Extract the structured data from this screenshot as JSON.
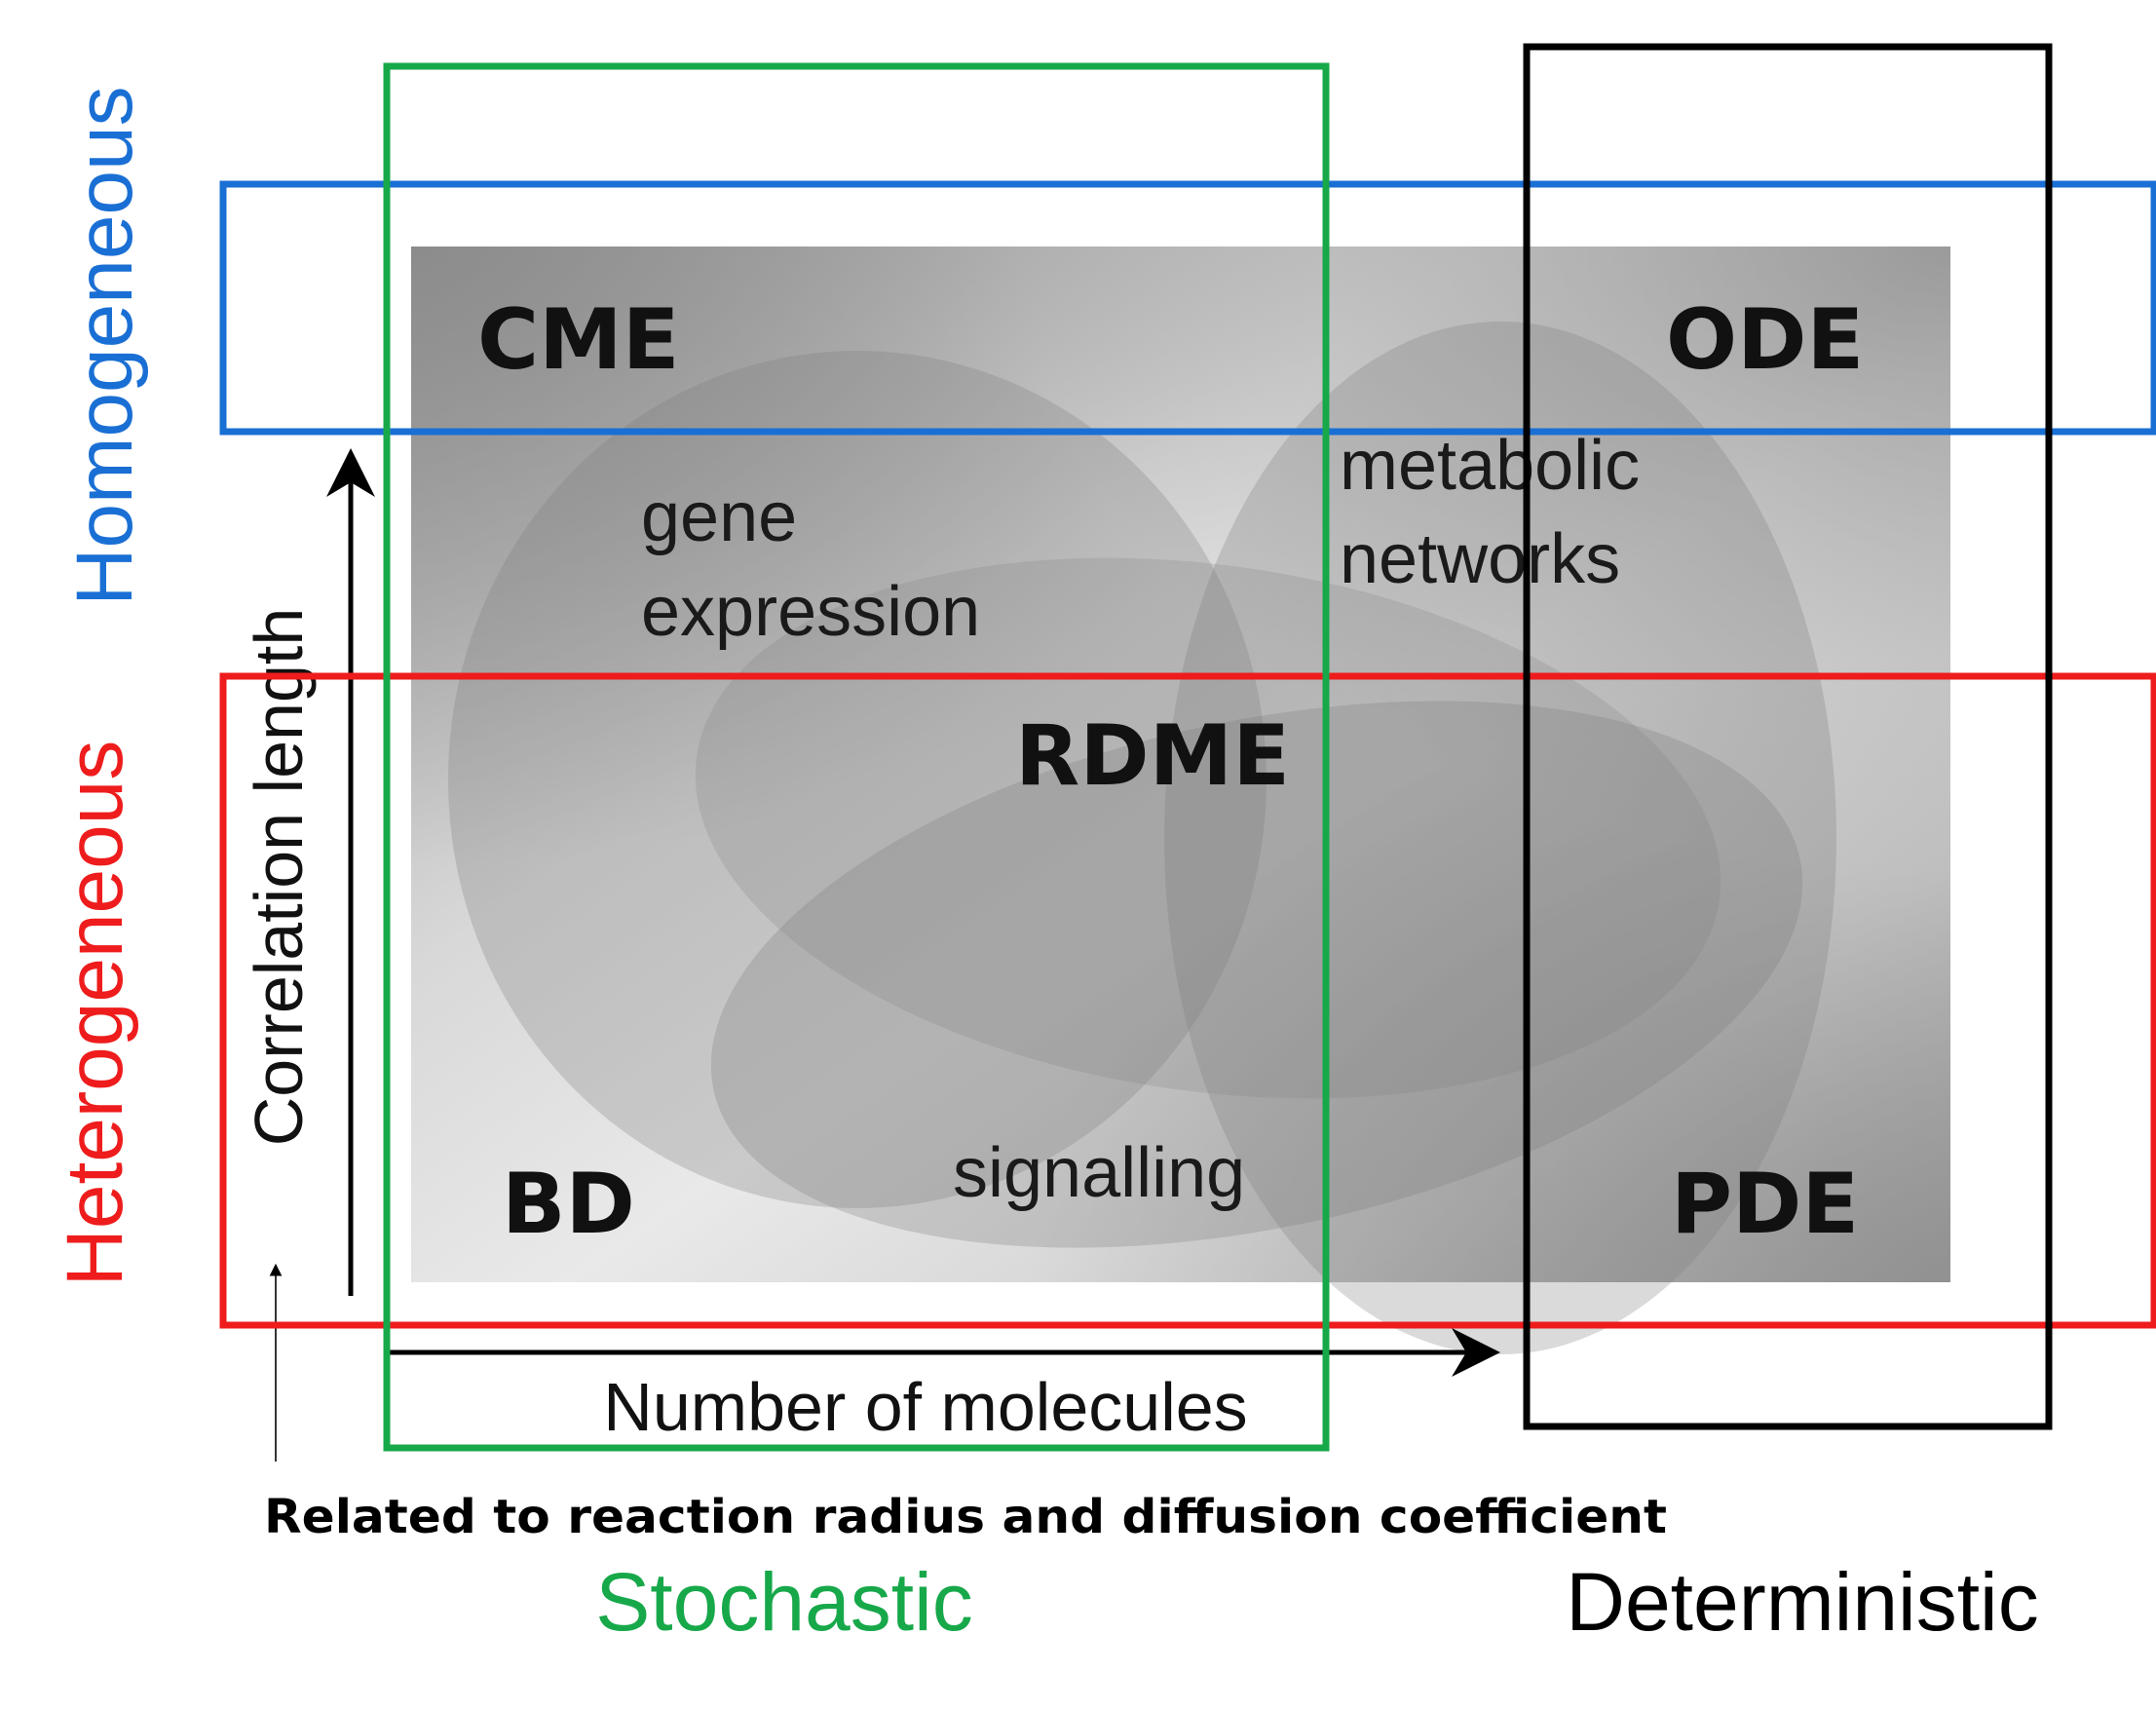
{
  "region_labels": {
    "cme": "CME",
    "ode": "ODE",
    "rdme": "RDME",
    "bd": "BD",
    "pde": "PDE"
  },
  "process_labels": {
    "gene_line1": "gene",
    "gene_line2": "expression",
    "metabolic_line1": "metabolic",
    "metabolic_line2": "networks",
    "signalling": "signalling"
  },
  "axes": {
    "y_label": "Correlation length",
    "x_label": "Number of molecules",
    "y_note": "Related to reaction radius and diffusion coefficient"
  },
  "categories": {
    "homogeneous": "Homogeneous",
    "heterogeneous": "Heterogeneous",
    "stochastic": "Stochastic",
    "deterministic": "Deterministic"
  },
  "colors": {
    "homogeneous": "#1a6fd4",
    "heterogeneous": "#ee1c1c",
    "stochastic": "#17a84a",
    "deterministic": "#000000",
    "ellipse_fill": "#7a7a7a",
    "label_text": "#1a1a1a"
  }
}
